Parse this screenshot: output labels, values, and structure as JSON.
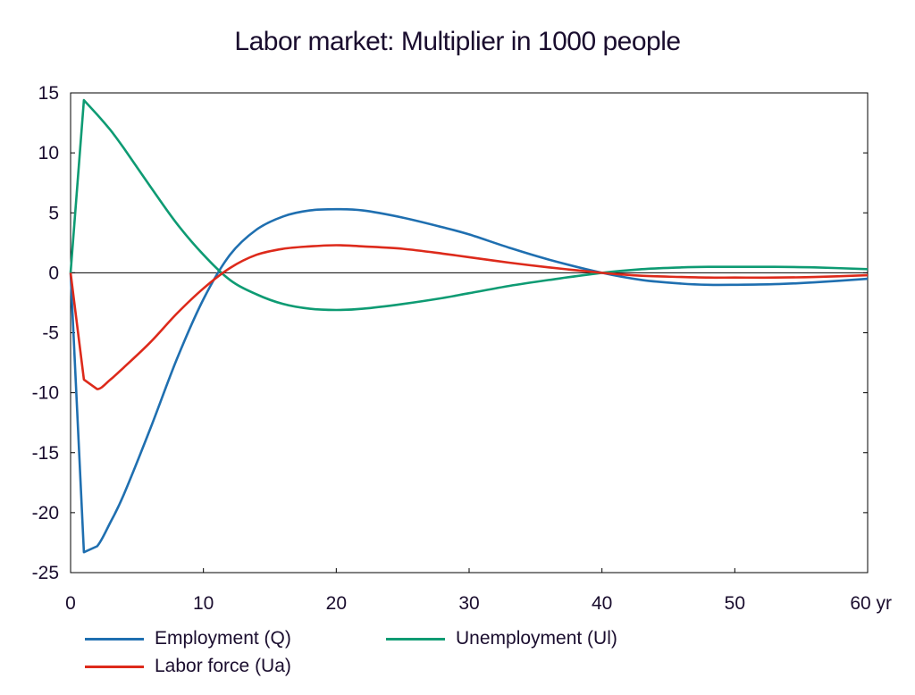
{
  "chart_data": {
    "type": "line",
    "title": "Labor market: Multiplier in 1000 people",
    "xlabel": "",
    "ylabel": "",
    "x_unit_label": "yr",
    "xlim": [
      0,
      60
    ],
    "ylim": [
      -25,
      15
    ],
    "x_ticks": [
      {
        "value": 0,
        "label": "0"
      },
      {
        "value": 10,
        "label": "10"
      },
      {
        "value": 20,
        "label": "20"
      },
      {
        "value": 30,
        "label": "30"
      },
      {
        "value": 40,
        "label": "40"
      },
      {
        "value": 50,
        "label": "50"
      },
      {
        "value": 60,
        "label": "60 yr"
      }
    ],
    "y_ticks": [
      {
        "value": 15,
        "label": "15"
      },
      {
        "value": 10,
        "label": "10"
      },
      {
        "value": 5,
        "label": "5"
      },
      {
        "value": 0,
        "label": "0"
      },
      {
        "value": -5,
        "label": "-5"
      },
      {
        "value": -10,
        "label": "-10"
      },
      {
        "value": -15,
        "label": "-15"
      },
      {
        "value": -20,
        "label": "-20"
      },
      {
        "value": -25,
        "label": "-25"
      }
    ],
    "grid": false,
    "zero_line": true,
    "legend_position": "bottom",
    "x": [
      0,
      1,
      2,
      3,
      4,
      6,
      8,
      10,
      12,
      14,
      16,
      18,
      20,
      22,
      25,
      28,
      30,
      33,
      36,
      40,
      43,
      46,
      48,
      50,
      53,
      56,
      60
    ],
    "series": [
      {
        "name": "Employment (Q)",
        "color": "#1f6fb0",
        "values": [
          0,
          -23.3,
          -22.8,
          -20.8,
          -18.5,
          -13.0,
          -7.2,
          -2.2,
          1.5,
          3.6,
          4.7,
          5.2,
          5.3,
          5.2,
          4.6,
          3.8,
          3.2,
          2.1,
          1.1,
          0,
          -0.6,
          -0.9,
          -1.0,
          -1.0,
          -0.95,
          -0.8,
          -0.5
        ]
      },
      {
        "name": "Unemployment (Ul)",
        "color": "#0e9b73",
        "values": [
          0,
          14.4,
          13.2,
          11.9,
          10.4,
          7.2,
          4.1,
          1.5,
          -0.6,
          -1.8,
          -2.6,
          -3.0,
          -3.1,
          -3.0,
          -2.6,
          -2.1,
          -1.7,
          -1.1,
          -0.6,
          0,
          0.3,
          0.45,
          0.5,
          0.5,
          0.5,
          0.45,
          0.3
        ]
      },
      {
        "name": "Labor force (Ua)",
        "color": "#dd2a1b",
        "values": [
          0,
          -8.9,
          -9.7,
          -8.9,
          -7.9,
          -5.8,
          -3.4,
          -1.3,
          0.4,
          1.5,
          2.0,
          2.2,
          2.3,
          2.2,
          2.0,
          1.6,
          1.3,
          0.85,
          0.45,
          0,
          -0.25,
          -0.35,
          -0.4,
          -0.4,
          -0.4,
          -0.35,
          -0.2
        ]
      }
    ]
  }
}
